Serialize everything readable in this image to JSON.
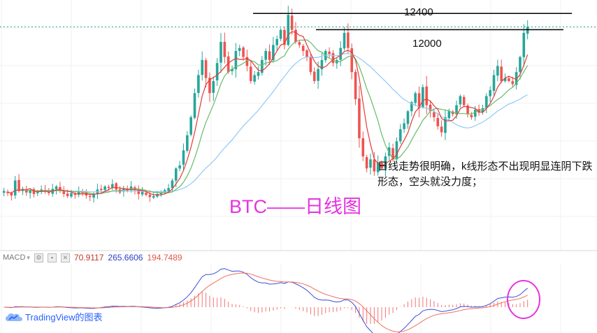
{
  "colors": {
    "up": "#26a69a",
    "down": "#ef5350",
    "ma_fast": "#e53935",
    "ma_mid": "#66bb6a",
    "ma_slow": "#90caf9",
    "macd_line": "#3a4fd6",
    "signal_line": "#f07060",
    "price_line": "#26a69a",
    "highlight": "#e633e0",
    "grid": "#f0f0f0"
  },
  "annotations": {
    "level_high": "12400",
    "level_mid": "12000",
    "note": "日线走势很明确，k线形态不出现明显连阴下跌形态，空头就没力度；",
    "title": "BTC——日线图"
  },
  "macd": {
    "name": "MACD",
    "values": [
      "70.9117",
      "265.6606",
      "194.7489"
    ]
  },
  "watermark": {
    "text": "TradingView的图表",
    "icon": "tradingview-cloud-icon"
  },
  "chart_data": {
    "type": "candlestick",
    "price_levels": [
      12400,
      12000
    ],
    "price_range": [
      4500,
      12800
    ],
    "close": [
      6550,
      6480,
      6400,
      6900,
      6550,
      6620,
      6500,
      6580,
      6450,
      6520,
      6600,
      6550,
      6480,
      6620,
      6700,
      6590,
      6450,
      6380,
      6480,
      6420,
      6520,
      6480,
      6400,
      6350,
      6450,
      6600,
      6580,
      6700,
      6650,
      6780,
      6600,
      6500,
      6620,
      6560,
      6700,
      6580,
      6450,
      6520,
      6420,
      6350,
      6380,
      6450,
      6500,
      6580,
      6650,
      6900,
      7300,
      7400,
      7900,
      8400,
      9000,
      9800,
      10400,
      10900,
      10300,
      9800,
      10200,
      10800,
      11500,
      11000,
      10500,
      10600,
      11200,
      11300,
      11000,
      10700,
      10200,
      10400,
      10500,
      10900,
      11200,
      10900,
      11400,
      11600,
      11900,
      11400,
      12400,
      11900,
      11500,
      11400,
      11200,
      11000,
      10500,
      10200,
      10600,
      10900,
      11200,
      11100,
      10800,
      10900,
      11300,
      11800,
      11300,
      10500,
      9600,
      8300,
      7700,
      7300,
      7600,
      7200,
      7500,
      7300,
      7700,
      8000,
      7600,
      8200,
      8600,
      8800,
      9200,
      9500,
      9800,
      9300,
      10000,
      9400,
      9200,
      9000,
      8700,
      8500,
      9000,
      9200,
      9100,
      9400,
      9700,
      9400,
      9100,
      9000,
      9250,
      9150,
      9300,
      9700,
      9900,
      10400,
      10700,
      10200,
      10300,
      10200,
      10100,
      10500,
      11000,
      11800,
      12000
    ],
    "ma_fast": "short moving average (red)",
    "ma_mid": "medium moving average (green)",
    "ma_slow": "long moving average (light blue)",
    "macd_values": {
      "hist": 70.9117,
      "macd": 265.6606,
      "signal": 194.7489
    },
    "xlabel": "",
    "ylabel": ""
  }
}
